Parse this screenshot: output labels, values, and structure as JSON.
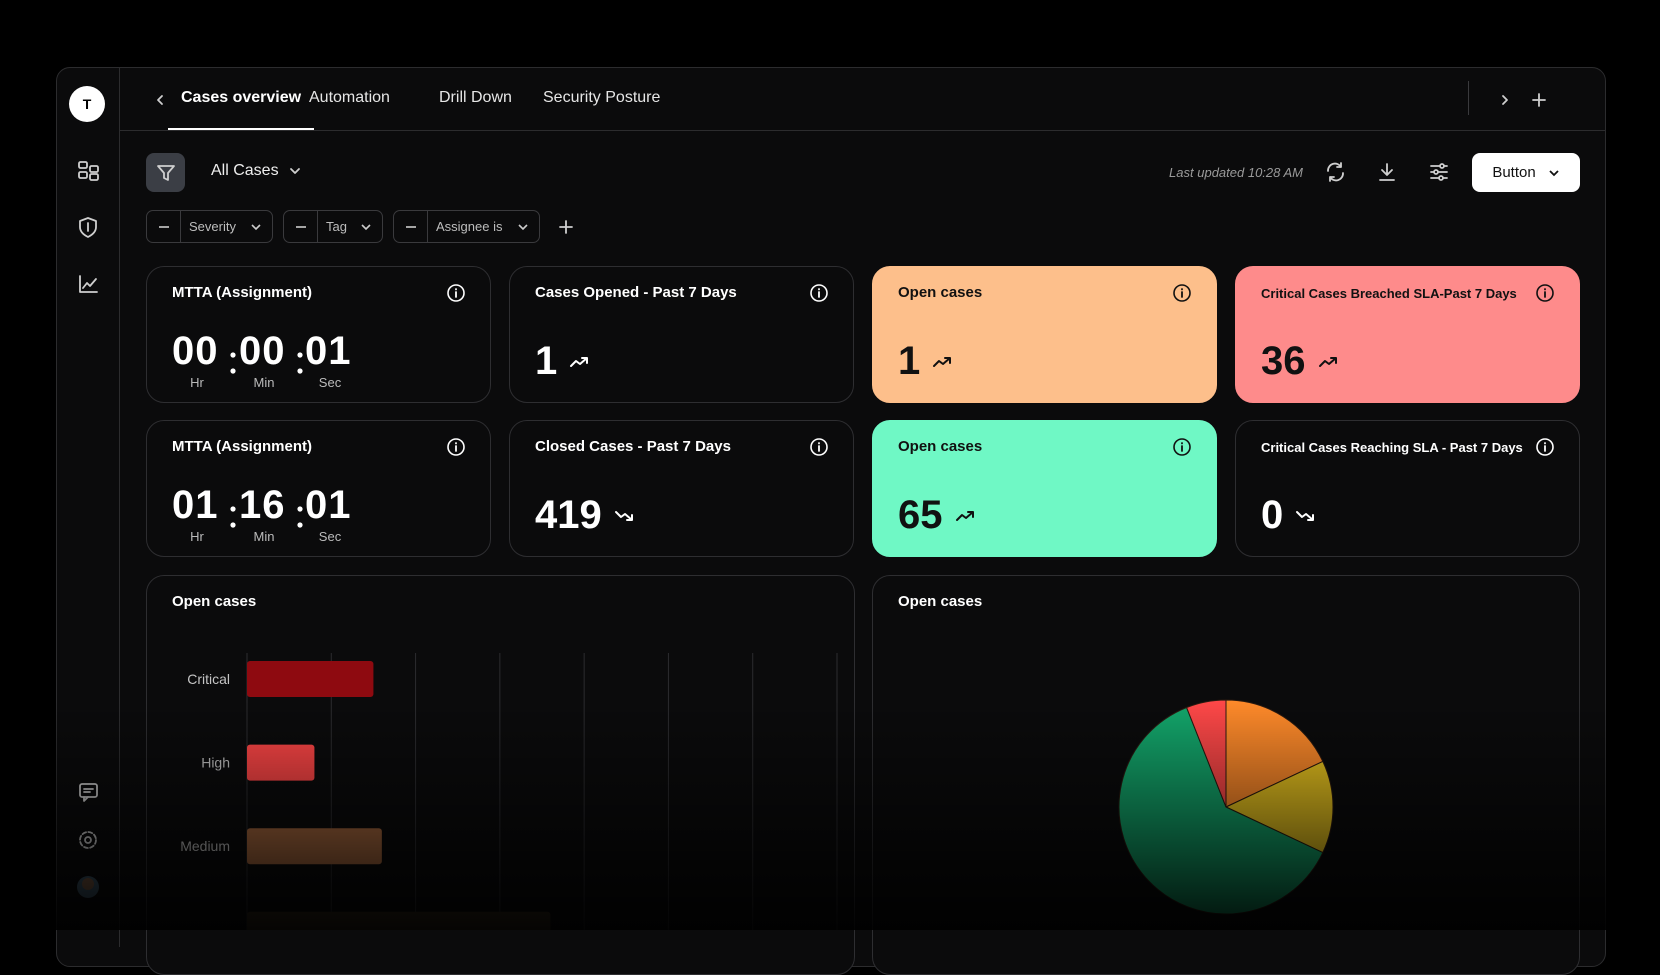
{
  "sidebar": {
    "avatar": "T"
  },
  "tabs": [
    "Cases overview",
    "Automation",
    "Drill Down",
    "Security Posture"
  ],
  "active_tab": 0,
  "toolbar": {
    "view": "All Cases",
    "last_updated": "Last updated 10:28 AM",
    "button": "Button"
  },
  "filters": [
    "Severity",
    "Tag",
    "Assignee is"
  ],
  "cards": [
    {
      "title": "MTTA (Assignment)",
      "kind": "timer",
      "parts": [
        {
          "value": "00",
          "unit": "Hr"
        },
        {
          "value": "00",
          "unit": "Min"
        },
        {
          "value": "01",
          "unit": "Sec"
        }
      ]
    },
    {
      "title": "Cases Opened - Past 7 Days",
      "kind": "stat",
      "value": 1,
      "trend": "up"
    },
    {
      "title": "Open cases",
      "kind": "stat",
      "value": 1,
      "trend": "up",
      "color": "#fdbf8b"
    },
    {
      "title": "Critical Cases Breached SLA-Past 7 Days",
      "kind": "stat",
      "value": 36,
      "trend": "up",
      "color": "#fe8b8b"
    },
    {
      "title": "MTTA (Assignment)",
      "kind": "timer",
      "parts": [
        {
          "value": "01",
          "unit": "Hr"
        },
        {
          "value": "16",
          "unit": "Min"
        },
        {
          "value": "01",
          "unit": "Sec"
        }
      ]
    },
    {
      "title": "Closed Cases - Past 7 Days",
      "kind": "stat",
      "value": 419,
      "trend": "down"
    },
    {
      "title": "Open cases",
      "kind": "stat",
      "value": 65,
      "trend": "up",
      "color": "#6ff8c5"
    },
    {
      "title": "Critical Cases Reaching SLA - Past 7 Days",
      "kind": "stat",
      "value": 0,
      "trend": "down"
    }
  ],
  "chart_data": [
    {
      "type": "bar",
      "orientation": "horizontal",
      "title": "Open cases",
      "categories": [
        "Critical",
        "High",
        "Medium",
        null
      ],
      "values": [
        1.5,
        0.8,
        1.6,
        3.6
      ],
      "colors": [
        "#8e0a10",
        "#ff4646",
        "#a8693f",
        "#3b3020"
      ],
      "xlim": [
        0,
        7
      ],
      "xticks": [
        0,
        1,
        2,
        3,
        4,
        5,
        6,
        7
      ],
      "grid": true
    },
    {
      "type": "pie",
      "title": "Open cases",
      "values": [
        18,
        14,
        62,
        6
      ],
      "colors": [
        "#ff8a2a",
        "#e9c41f",
        "#13a66b",
        "#ff4848"
      ]
    }
  ]
}
